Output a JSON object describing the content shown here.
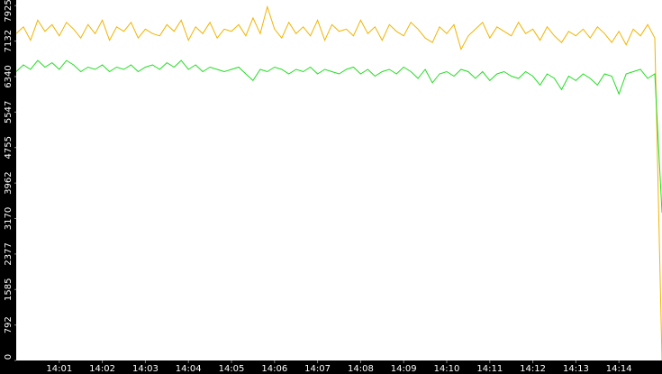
{
  "chart_data": {
    "type": "line",
    "x": [
      "14:00:00",
      "14:00:10",
      "14:00:20",
      "14:00:30",
      "14:00:40",
      "14:00:50",
      "14:01:00",
      "14:01:10",
      "14:01:20",
      "14:01:30",
      "14:01:40",
      "14:01:50",
      "14:02:00",
      "14:02:10",
      "14:02:20",
      "14:02:30",
      "14:02:40",
      "14:02:50",
      "14:03:00",
      "14:03:10",
      "14:03:20",
      "14:03:30",
      "14:03:40",
      "14:03:50",
      "14:04:00",
      "14:04:10",
      "14:04:20",
      "14:04:30",
      "14:04:40",
      "14:04:50",
      "14:05:00",
      "14:05:10",
      "14:05:20",
      "14:05:30",
      "14:05:40",
      "14:05:50",
      "14:06:00",
      "14:06:10",
      "14:06:20",
      "14:06:30",
      "14:06:40",
      "14:06:50",
      "14:07:00",
      "14:07:10",
      "14:07:20",
      "14:07:30",
      "14:07:40",
      "14:07:50",
      "14:08:00",
      "14:08:10",
      "14:08:20",
      "14:08:30",
      "14:08:40",
      "14:08:50",
      "14:09:00",
      "14:09:10",
      "14:09:20",
      "14:09:30",
      "14:09:40",
      "14:09:50",
      "14:10:00",
      "14:10:10",
      "14:10:20",
      "14:10:30",
      "14:10:40",
      "14:10:50",
      "14:11:00",
      "14:11:10",
      "14:11:20",
      "14:11:30",
      "14:11:40",
      "14:11:50",
      "14:12:00",
      "14:12:10",
      "14:12:20",
      "14:12:30",
      "14:12:40",
      "14:12:50",
      "14:13:00",
      "14:13:10",
      "14:13:20",
      "14:13:30",
      "14:13:40",
      "14:13:50",
      "14:14:00",
      "14:14:10",
      "14:14:20",
      "14:14:30",
      "14:14:40",
      "14:14:50",
      "14:15:00"
    ],
    "series": [
      {
        "color": "#f0b400",
        "values": [
          7300,
          7450,
          7150,
          7600,
          7350,
          7500,
          7250,
          7550,
          7400,
          7200,
          7500,
          7300,
          7600,
          7150,
          7450,
          7350,
          7550,
          7200,
          7400,
          7300,
          7250,
          7500,
          7350,
          7600,
          7150,
          7450,
          7300,
          7550,
          7200,
          7400,
          7350,
          7500,
          7250,
          7650,
          7300,
          7900,
          7400,
          7200,
          7550,
          7300,
          7450,
          7250,
          7600,
          7150,
          7500,
          7350,
          7400,
          7250,
          7600,
          7300,
          7450,
          7150,
          7500,
          7350,
          7250,
          7550,
          7400,
          7200,
          7100,
          7450,
          7300,
          7500,
          6950,
          7250,
          7400,
          7550,
          7200,
          7450,
          7350,
          7250,
          7550,
          7300,
          7400,
          7150,
          7450,
          7250,
          7100,
          7350,
          7250,
          7400,
          7200,
          7450,
          7300,
          7100,
          7350,
          7050,
          7400,
          7250,
          7500,
          7200,
          0
        ]
      },
      {
        "color": "#22dd22",
        "values": [
          6450,
          6600,
          6500,
          6700,
          6550,
          6650,
          6500,
          6700,
          6600,
          6450,
          6550,
          6500,
          6600,
          6450,
          6550,
          6500,
          6600,
          6450,
          6550,
          6600,
          6500,
          6650,
          6550,
          6700,
          6500,
          6600,
          6450,
          6550,
          6500,
          6450,
          6500,
          6550,
          6400,
          6250,
          6500,
          6450,
          6550,
          6500,
          6400,
          6500,
          6450,
          6550,
          6400,
          6500,
          6450,
          6400,
          6500,
          6550,
          6400,
          6500,
          6350,
          6450,
          6500,
          6400,
          6550,
          6450,
          6300,
          6500,
          6200,
          6400,
          6450,
          6350,
          6500,
          6450,
          6300,
          6450,
          6250,
          6400,
          6450,
          6350,
          6300,
          6450,
          6350,
          6150,
          6400,
          6300,
          6050,
          6350,
          6250,
          6400,
          6300,
          6150,
          6400,
          6350,
          5950,
          6400,
          6450,
          6500,
          6300,
          6400,
          3300
        ]
      }
    ],
    "xlim": [
      "14:00:00",
      "14:15:00"
    ],
    "xticks": [
      "14:01",
      "14:02",
      "14:03",
      "14:04",
      "14:05",
      "14:06",
      "14:07",
      "14:08",
      "14:09",
      "14:10",
      "14:11",
      "14:12",
      "14:13",
      "14:14"
    ],
    "ylim": [
      0,
      8050
    ],
    "yticks": [
      0,
      792,
      1585,
      2377,
      3170,
      3962,
      4755,
      5547,
      6340,
      7132,
      7925
    ],
    "grid": false
  }
}
